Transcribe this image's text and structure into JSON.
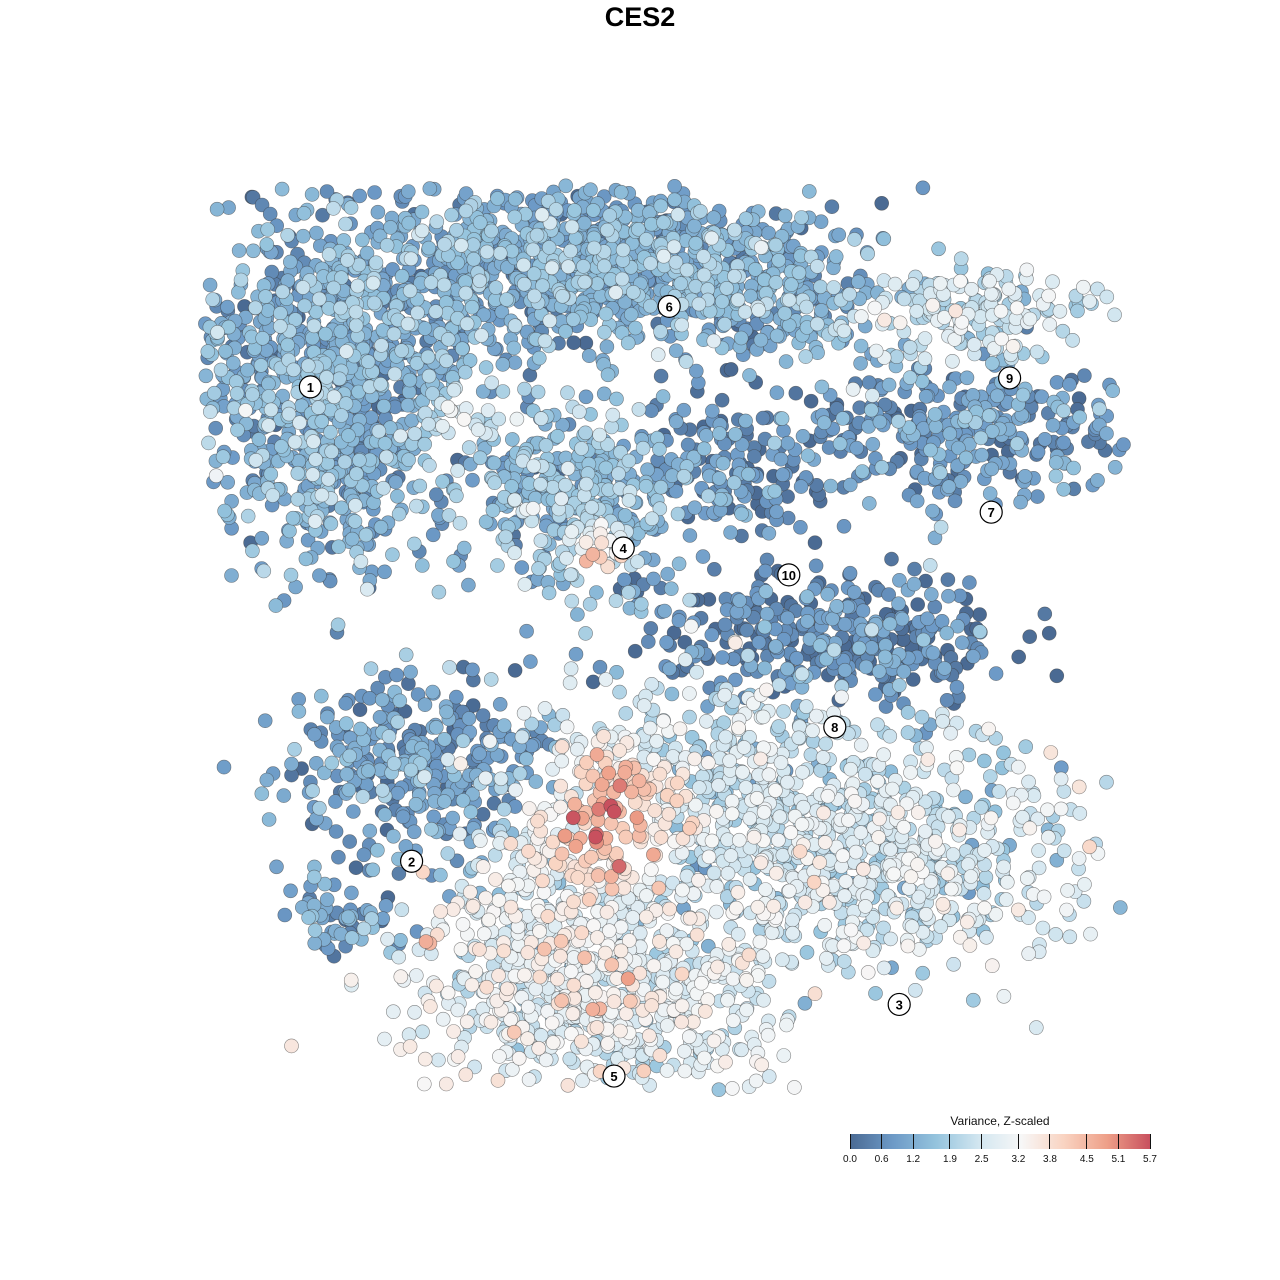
{
  "chart_data": {
    "type": "scatter",
    "title": "CES2",
    "xlabel": "",
    "ylabel": "",
    "grid": false,
    "legend": {
      "title": "Variance, Z-scaled",
      "placement": "bottom-right",
      "ticks": [
        "0.0",
        "0.6",
        "1.2",
        "1.9",
        "2.5",
        "3.2",
        "3.8",
        "4.5",
        "5.1",
        "5.7"
      ],
      "range": [
        0.0,
        5.7
      ]
    },
    "colormap": [
      "#4a6a93",
      "#6d9ac7",
      "#94c3dd",
      "#d2e6f0",
      "#f7f7f7",
      "#f9d3c1",
      "#ee9f88",
      "#c8505e"
    ],
    "clusters": [
      {
        "label": "1",
        "x": 0.12,
        "y": 0.78,
        "mean": 1.2
      },
      {
        "label": "2",
        "x": 0.23,
        "y": 0.25,
        "mean": 0.9
      },
      {
        "label": "3",
        "x": 0.76,
        "y": 0.09,
        "mean": 2.4
      },
      {
        "label": "4",
        "x": 0.46,
        "y": 0.6,
        "mean": 1.5
      },
      {
        "label": "5",
        "x": 0.45,
        "y": 0.01,
        "mean": 2.8
      },
      {
        "label": "6",
        "x": 0.51,
        "y": 0.87,
        "mean": 1.2
      },
      {
        "label": "7",
        "x": 0.86,
        "y": 0.64,
        "mean": 0.8
      },
      {
        "label": "8",
        "x": 0.69,
        "y": 0.4,
        "mean": 0.5
      },
      {
        "label": "9",
        "x": 0.88,
        "y": 0.79,
        "mean": 2.3
      },
      {
        "label": "10",
        "x": 0.64,
        "y": 0.57,
        "mean": 0.6
      }
    ]
  }
}
